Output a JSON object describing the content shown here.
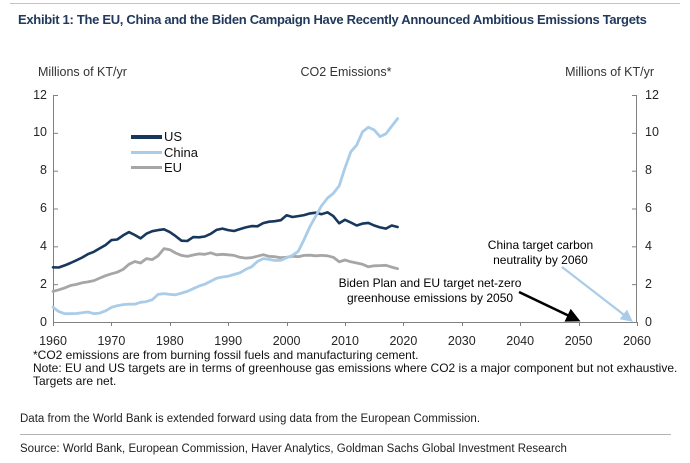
{
  "page": {
    "title": "Exhibit 1: The EU, China and the Biden Campaign Have Recently Announced Ambitious Emissions Targets",
    "footnotes": [
      "*CO2 emissions are from burning fossil fuels and manufacturing cement.",
      "Note: EU and US targets are in terms of greenhouse gas emissions where CO2 is a major component but not exhaustive.",
      "Targets are net."
    ],
    "data_note": "Data from the World Bank is extended forward using data from the European Commission.",
    "source": "Source: World Bank, European Commission, Haver Analytics, Goldman Sachs Global Investment Research"
  },
  "chart_data": {
    "type": "line",
    "title": "CO2 Emissions*",
    "y_axis_label_left": "Millions of KT/yr",
    "y_axis_label_right": "Millions of KT/yr",
    "xlim": [
      1960,
      2060
    ],
    "ylim": [
      0,
      12
    ],
    "x_ticks": [
      1960,
      1970,
      1980,
      1990,
      2000,
      2010,
      2020,
      2030,
      2040,
      2050,
      2060
    ],
    "y_ticks": [
      0,
      2,
      4,
      6,
      8,
      10,
      12
    ],
    "grid": false,
    "legend_position": "upper-left-inside",
    "x": [
      1960,
      1961,
      1962,
      1963,
      1964,
      1965,
      1966,
      1967,
      1968,
      1969,
      1970,
      1971,
      1972,
      1973,
      1974,
      1975,
      1976,
      1977,
      1978,
      1979,
      1980,
      1981,
      1982,
      1983,
      1984,
      1985,
      1986,
      1987,
      1988,
      1989,
      1990,
      1991,
      1992,
      1993,
      1994,
      1995,
      1996,
      1997,
      1998,
      1999,
      2000,
      2001,
      2002,
      2003,
      2004,
      2005,
      2006,
      2007,
      2008,
      2009,
      2010,
      2011,
      2012,
      2013,
      2014,
      2015,
      2016,
      2017,
      2018,
      2019
    ],
    "series": [
      {
        "name": "US",
        "color": "#17375d",
        "values": [
          2.89,
          2.88,
          2.99,
          3.12,
          3.26,
          3.41,
          3.59,
          3.71,
          3.89,
          4.07,
          4.33,
          4.36,
          4.58,
          4.75,
          4.6,
          4.42,
          4.67,
          4.8,
          4.86,
          4.9,
          4.75,
          4.54,
          4.3,
          4.28,
          4.49,
          4.48,
          4.52,
          4.66,
          4.87,
          4.94,
          4.86,
          4.81,
          4.91,
          5.0,
          5.07,
          5.06,
          5.23,
          5.3,
          5.33,
          5.38,
          5.64,
          5.55,
          5.6,
          5.65,
          5.74,
          5.78,
          5.7,
          5.8,
          5.6,
          5.22,
          5.4,
          5.26,
          5.1,
          5.2,
          5.24,
          5.1,
          5.0,
          4.94,
          5.1,
          5.02
        ]
      },
      {
        "name": "China",
        "color": "#a9cce9",
        "values": [
          0.78,
          0.55,
          0.44,
          0.44,
          0.45,
          0.49,
          0.53,
          0.44,
          0.47,
          0.59,
          0.77,
          0.86,
          0.92,
          0.94,
          0.94,
          1.04,
          1.08,
          1.18,
          1.46,
          1.5,
          1.46,
          1.44,
          1.53,
          1.62,
          1.76,
          1.9,
          2.0,
          2.15,
          2.31,
          2.38,
          2.42,
          2.51,
          2.6,
          2.78,
          2.92,
          3.2,
          3.35,
          3.31,
          3.25,
          3.26,
          3.4,
          3.52,
          3.74,
          4.36,
          5.05,
          5.6,
          6.15,
          6.55,
          6.8,
          7.2,
          8.15,
          9.0,
          9.35,
          10.05,
          10.3,
          10.15,
          9.8,
          9.95,
          10.35,
          10.75
        ]
      },
      {
        "name": "EU",
        "color": "#a6a6a6",
        "values": [
          1.62,
          1.7,
          1.8,
          1.93,
          1.99,
          2.07,
          2.12,
          2.19,
          2.32,
          2.45,
          2.55,
          2.63,
          2.78,
          3.05,
          3.2,
          3.12,
          3.35,
          3.3,
          3.5,
          3.88,
          3.82,
          3.65,
          3.52,
          3.47,
          3.54,
          3.6,
          3.58,
          3.66,
          3.55,
          3.58,
          3.55,
          3.52,
          3.42,
          3.38,
          3.4,
          3.48,
          3.56,
          3.47,
          3.45,
          3.4,
          3.42,
          3.48,
          3.45,
          3.52,
          3.53,
          3.5,
          3.52,
          3.5,
          3.42,
          3.18,
          3.28,
          3.18,
          3.12,
          3.05,
          2.92,
          2.97,
          2.98,
          3.0,
          2.9,
          2.82
        ]
      }
    ],
    "annotations": [
      {
        "line1": "China target carbon",
        "line2": "neutrality by 2060",
        "arrow_color": "#a9cce9",
        "arrow_to_year": 2060,
        "arrow_to_value": 0
      },
      {
        "line1": "Biden Plan and EU target net-zero",
        "line2": "greenhouse emissions by 2050",
        "arrow_color": "#000000",
        "arrow_to_year": 2050,
        "arrow_to_value": 0
      }
    ]
  },
  "colors": {
    "title": "#20395c",
    "axis": "#808080",
    "tick_label": "#262626",
    "us_line": "#17375d",
    "china_line": "#a9cce9",
    "eu_line": "#a6a6a6"
  }
}
